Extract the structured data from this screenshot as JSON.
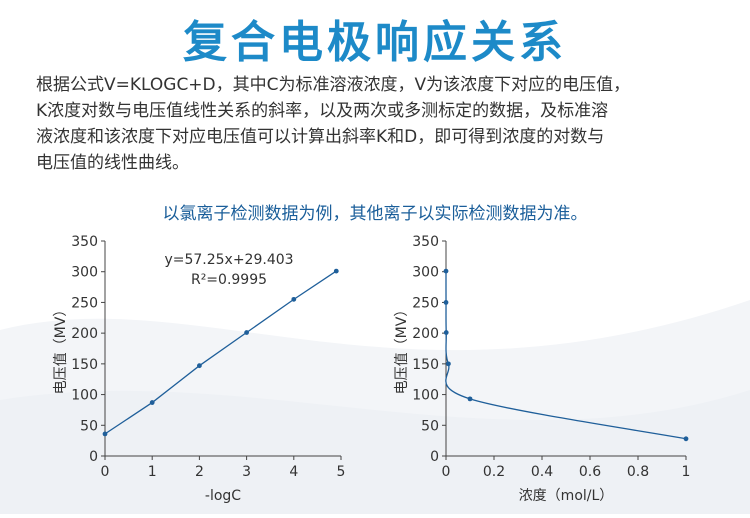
{
  "header": {
    "title": "复合电极响应关系"
  },
  "description": {
    "lines": [
      "根据公式V=KLOGC+D，其中C为标准溶液浓度，V为该浓度下对应的电压值，",
      "K浓度对数与电压值线性关系的斜率，以及两次或多测标定的数据，及标准溶",
      "液浓度和该浓度下对应电压值可以计算出斜率K和D，即可得到浓度的对数与",
      "电压值的线性曲线。"
    ]
  },
  "note": "以氯离子检测数据为例，其他离子以实际检测数据为准。",
  "colors": {
    "title": "#1d8ac8",
    "note": "#1a5e9a",
    "series": "#1f5f9a",
    "axis": "#444444"
  },
  "chart_data": [
    {
      "type": "line",
      "xlabel": "-logC",
      "ylabel": "电压值（MV）",
      "xlim": [
        0,
        5
      ],
      "ylim": [
        0,
        350
      ],
      "xticks": [
        "0",
        "1",
        "2",
        "3",
        "4",
        "5"
      ],
      "yticks": [
        "0",
        "50",
        "100",
        "150",
        "200",
        "250",
        "300",
        "350"
      ],
      "grid": false,
      "annotation": {
        "equation": "y=57.25x+29.403",
        "r2": "R²=0.9995"
      },
      "series": [
        {
          "x": [
            0,
            1,
            2,
            3,
            4,
            4.9
          ],
          "y": [
            36,
            87,
            147,
            201,
            255,
            301
          ]
        }
      ]
    },
    {
      "type": "line",
      "xlabel": "浓度（mol/L）",
      "ylabel": "电压值（MV）",
      "xlim": [
        0,
        1
      ],
      "ylim": [
        0,
        350
      ],
      "xticks": [
        "0",
        "0.2",
        "0.4",
        "0.6",
        "0.8",
        "1"
      ],
      "yticks": [
        "0",
        "50",
        "100",
        "150",
        "200",
        "250",
        "300",
        "350"
      ],
      "grid": false,
      "series": [
        {
          "x": [
            1e-05,
            0.0001,
            0.001,
            0.01,
            0.1,
            1
          ],
          "y": [
            301,
            250,
            201,
            150,
            93,
            28
          ]
        }
      ]
    }
  ]
}
